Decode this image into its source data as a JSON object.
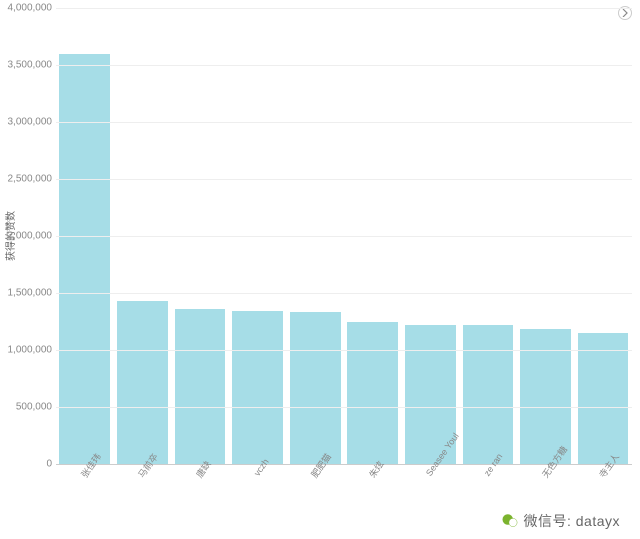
{
  "chart": {
    "type": "bar",
    "y_axis_title": "获得的赞数",
    "ylim": [
      0,
      4000000
    ],
    "ytick_step": 500000,
    "y_tick_labels": [
      "0",
      "500,000",
      "1,000,000",
      "1,500,000",
      "2,000,000",
      "2,500,000",
      "3,000,000",
      "3,500,000",
      "4,000,000"
    ],
    "grid_color": "#eeeeee",
    "background_color": "#ffffff",
    "tick_font_color": "#888888",
    "tick_fontsize": 10,
    "bar_color": "#a6dde7",
    "bar_width_ratio": 0.88,
    "categories": [
      "张佳玮",
      "马前卒",
      "唐缺",
      "vczh",
      "肥肥猫",
      "朱炫",
      "Seasee Youl",
      "ze ran",
      "无色方糖",
      "寺主人"
    ],
    "values": [
      3600000,
      1430000,
      1360000,
      1340000,
      1330000,
      1250000,
      1220000,
      1220000,
      1180000,
      1150000
    ],
    "x_label_rotation": -55
  },
  "watermark": {
    "text": "微信号: datayx"
  }
}
